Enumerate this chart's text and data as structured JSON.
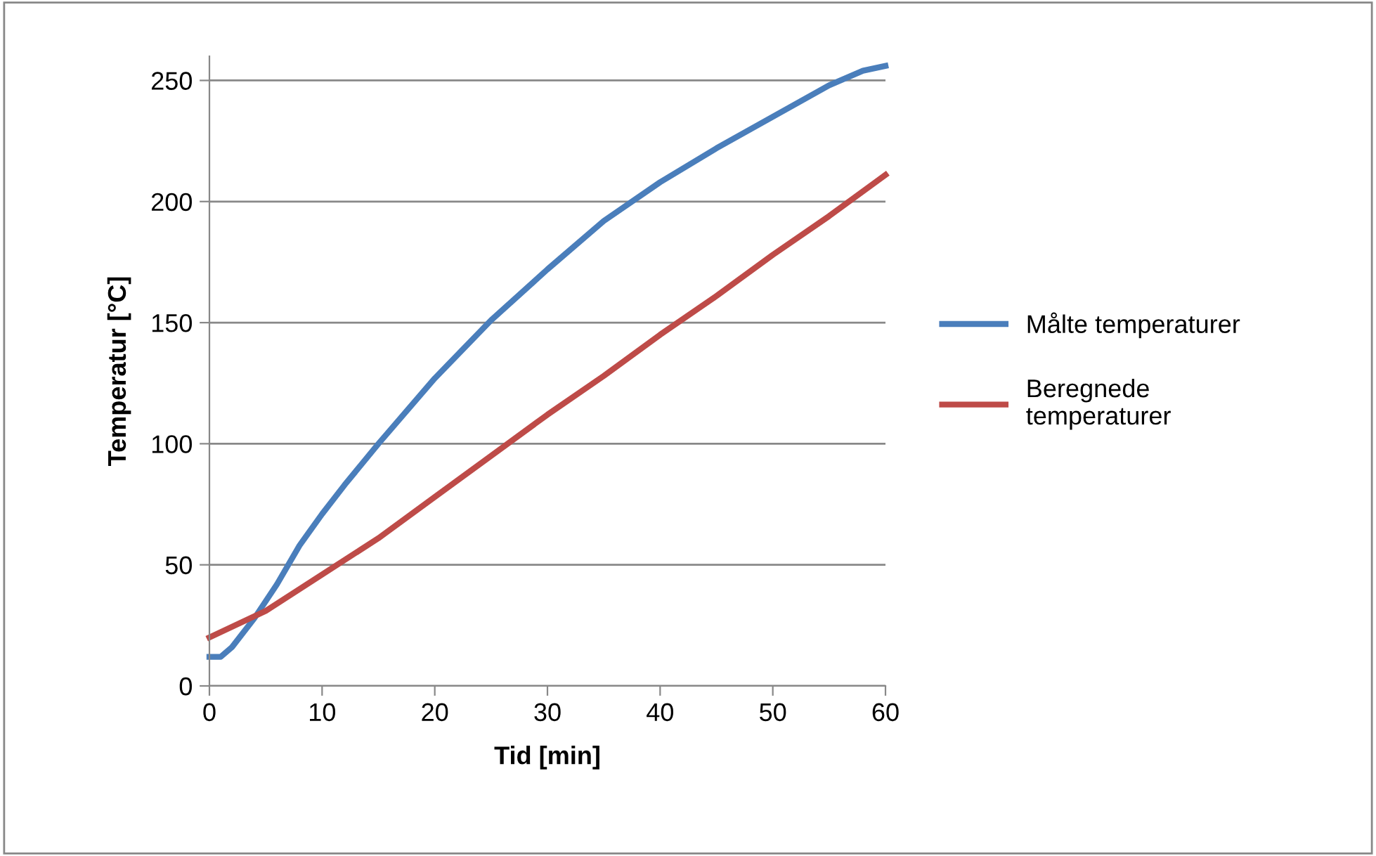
{
  "chart_data": {
    "type": "line",
    "xlabel": "Tid [min]",
    "ylabel": "Temperatur [°C]",
    "xlim": [
      0,
      60
    ],
    "xticks": [
      0,
      10,
      20,
      30,
      40,
      50,
      60
    ],
    "ylim": [
      0,
      260
    ],
    "yticks": [
      0,
      50,
      100,
      150,
      200,
      250
    ],
    "grid": "y",
    "legend": "right",
    "marker": "none",
    "line_style": "solid",
    "series": [
      {
        "name": "Målte temperaturer",
        "color": "#4a7ebb",
        "x": [
          0,
          1,
          2,
          4,
          6,
          8,
          10,
          12,
          15,
          20,
          25,
          30,
          35,
          40,
          45,
          50,
          55,
          58,
          60
        ],
        "values": [
          12,
          12,
          16,
          28,
          42,
          58,
          71,
          83,
          100,
          127,
          151,
          172,
          192,
          208,
          222,
          235,
          248,
          254,
          256
        ]
      },
      {
        "name": "Beregnede\ntemperaturer",
        "color": "#be4b48",
        "x": [
          0,
          5,
          10,
          15,
          20,
          25,
          30,
          35,
          40,
          45,
          50,
          55,
          60
        ],
        "values": [
          20,
          31,
          46,
          61,
          78,
          95,
          112,
          128,
          145,
          161,
          178,
          194,
          211
        ]
      }
    ]
  }
}
